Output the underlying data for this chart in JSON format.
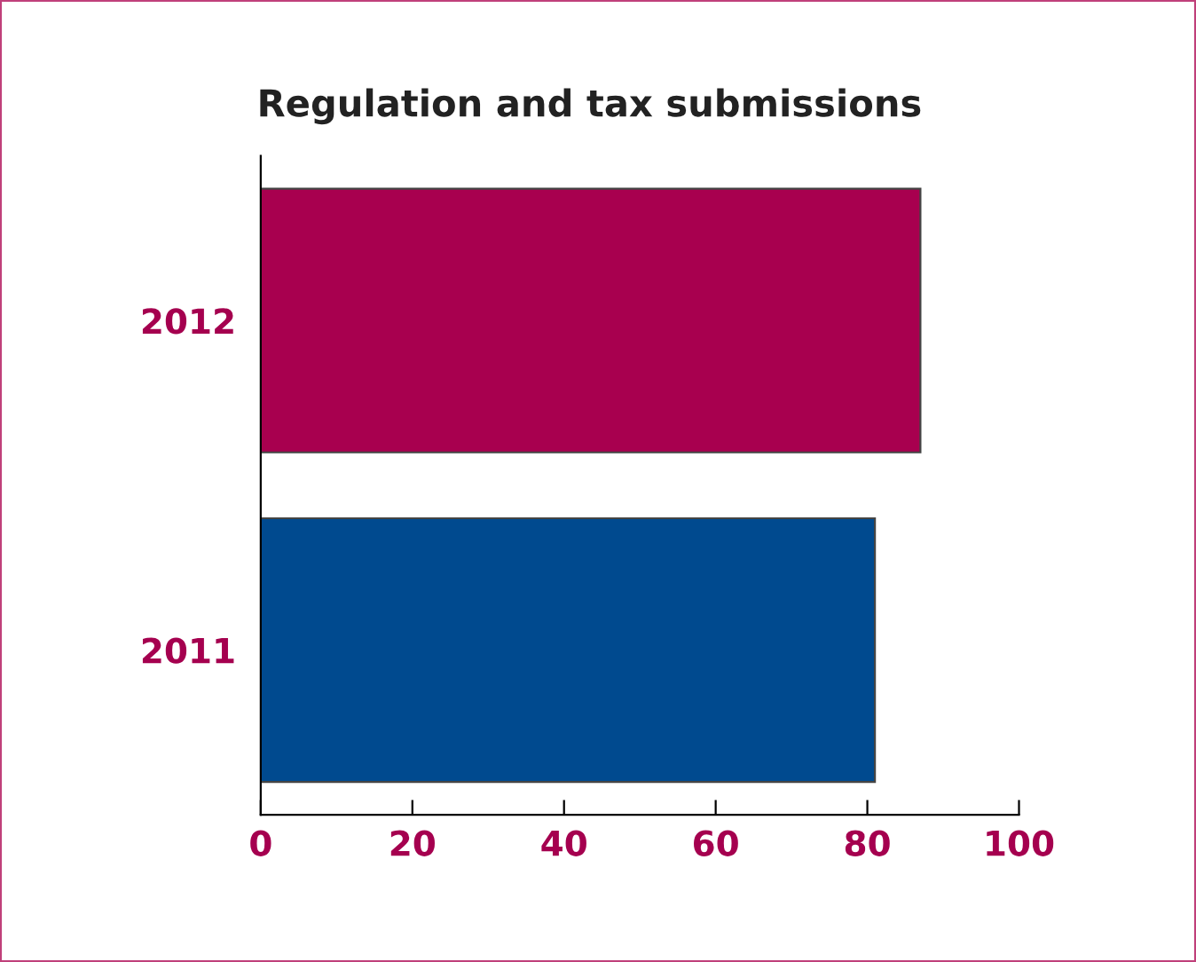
{
  "chart_data": {
    "type": "bar",
    "orientation": "horizontal",
    "title": "Regulation and tax submissions",
    "categories": [
      "2012",
      "2011"
    ],
    "values": [
      87,
      81
    ],
    "colors": [
      "#a8004f",
      "#004a8f"
    ],
    "xlim": [
      0,
      100
    ],
    "xticks": [
      0,
      20,
      40,
      60,
      80,
      100
    ],
    "grid": false
  }
}
